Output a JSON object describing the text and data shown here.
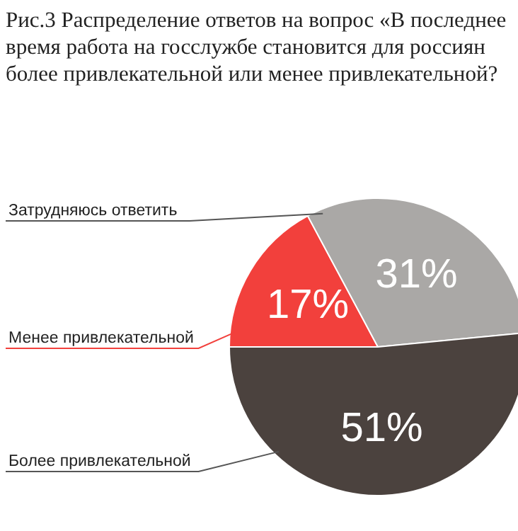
{
  "chart_data": {
    "type": "pie",
    "title": "Рис.3 Распределение ответов на вопрос «В последнее время работа на госслужбе становится для россиян более привлекательной или менее привлекательной?",
    "categories": [
      "Менее привлекательной",
      "Затрудняюсь ответить",
      "Более привлекательной"
    ],
    "values": [
      17,
      31,
      51
    ],
    "colors": [
      "#f2403c",
      "#aaa8a6",
      "#4b423e"
    ],
    "value_labels": [
      "17%",
      "31%",
      "51%"
    ]
  }
}
